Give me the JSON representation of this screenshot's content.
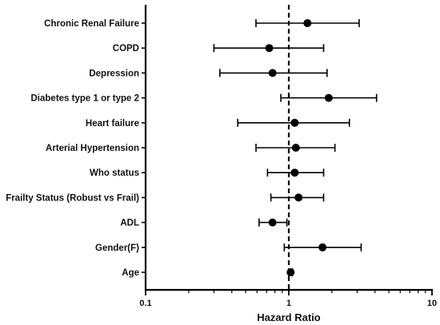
{
  "chart_data": {
    "type": "forest",
    "x_scale": "log",
    "xlim": [
      0.1,
      10
    ],
    "x_ticks": [
      "0.1",
      "1",
      "10"
    ],
    "x_tick_values": [
      0.1,
      1,
      10
    ],
    "xlabel": "Hazard Ratio",
    "reference_line": 1,
    "grid": false,
    "colors": {
      "marks": "#000000",
      "axis": "#000000",
      "text": "#111111",
      "background": "#ffffff"
    },
    "rows": [
      {
        "label": "Chronic Renal Failure",
        "hr": 1.35,
        "ci_low": 0.59,
        "ci_high": 3.1
      },
      {
        "label": "COPD",
        "hr": 0.73,
        "ci_low": 0.3,
        "ci_high": 1.75
      },
      {
        "label": "Depression",
        "hr": 0.77,
        "ci_low": 0.33,
        "ci_high": 1.85
      },
      {
        "label": "Diabetes type 1 or type 2",
        "hr": 1.9,
        "ci_low": 0.88,
        "ci_high": 4.1
      },
      {
        "label": "Heart failure",
        "hr": 1.1,
        "ci_low": 0.44,
        "ci_high": 2.65
      },
      {
        "label": "Arterial Hypertension",
        "hr": 1.12,
        "ci_low": 0.59,
        "ci_high": 2.1
      },
      {
        "label": "Who status",
        "hr": 1.1,
        "ci_low": 0.71,
        "ci_high": 1.75
      },
      {
        "label": "Frailty Status (Robust vs Frail)",
        "hr": 1.17,
        "ci_low": 0.75,
        "ci_high": 1.75
      },
      {
        "label": "ADL",
        "hr": 0.77,
        "ci_low": 0.62,
        "ci_high": 0.97
      },
      {
        "label": "Gender(F)",
        "hr": 1.72,
        "ci_low": 0.93,
        "ci_high": 3.2
      },
      {
        "label": "Age",
        "hr": 1.03,
        "ci_low": 1.0,
        "ci_high": 1.06
      }
    ]
  }
}
